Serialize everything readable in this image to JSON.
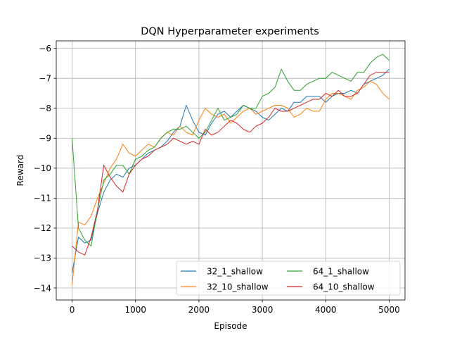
{
  "chart_data": {
    "type": "line",
    "title": "DQN Hyperparameter experiments",
    "xlabel": "Episode",
    "ylabel": "Reward",
    "xlim": [
      -250,
      5250
    ],
    "ylim": [
      -14.4,
      -5.75
    ],
    "grid": true,
    "legend_position": "lower right",
    "legend_columns": 2,
    "x_ticks": [
      0,
      1000,
      2000,
      3000,
      4000,
      5000
    ],
    "x_tick_labels": [
      "0",
      "1000",
      "2000",
      "3000",
      "4000",
      "5000"
    ],
    "y_ticks": [
      -14,
      -13,
      -12,
      -11,
      -10,
      -9,
      -8,
      -7,
      -6
    ],
    "y_tick_labels": [
      "−14",
      "−13",
      "−12",
      "−11",
      "−10",
      "−9",
      "−8",
      "−7",
      "−6"
    ],
    "x": [
      0,
      100,
      200,
      300,
      400,
      500,
      600,
      700,
      800,
      900,
      1000,
      1100,
      1200,
      1300,
      1400,
      1500,
      1600,
      1700,
      1800,
      1900,
      2000,
      2100,
      2200,
      2300,
      2400,
      2500,
      2600,
      2700,
      2800,
      2900,
      3000,
      3100,
      3200,
      3300,
      3400,
      3500,
      3600,
      3700,
      3800,
      3900,
      4000,
      4100,
      4200,
      4300,
      4400,
      4500,
      4600,
      4700,
      4800,
      4900,
      5000
    ],
    "series": [
      {
        "name": "32_1_shallow",
        "color": "#1f77b4",
        "values": [
          -13.5,
          -12.3,
          -12.5,
          -12.4,
          -11.5,
          -10.8,
          -10.4,
          -10.2,
          -10.3,
          -10.0,
          -9.9,
          -9.7,
          -9.5,
          -9.4,
          -9.3,
          -9.1,
          -8.8,
          -8.6,
          -7.9,
          -8.4,
          -8.8,
          -8.9,
          -8.5,
          -8.2,
          -8.1,
          -8.3,
          -8.1,
          -7.9,
          -8.0,
          -8.1,
          -8.3,
          -8.4,
          -8.2,
          -8.0,
          -8.1,
          -7.8,
          -7.8,
          -7.6,
          -7.6,
          -7.6,
          -7.8,
          -7.6,
          -7.5,
          -7.5,
          -7.4,
          -7.5,
          -7.2,
          -7.1,
          -7.0,
          -6.9,
          -6.7
        ]
      },
      {
        "name": "32_10_shallow",
        "color": "#ff7f0e",
        "values": [
          -13.9,
          -11.8,
          -11.9,
          -11.6,
          -11.0,
          -10.5,
          -10.0,
          -9.7,
          -9.2,
          -9.5,
          -9.6,
          -9.4,
          -9.2,
          -9.3,
          -9.0,
          -8.8,
          -8.9,
          -8.6,
          -8.8,
          -8.9,
          -8.4,
          -8.0,
          -8.2,
          -8.3,
          -8.2,
          -8.5,
          -8.3,
          -8.1,
          -8.0,
          -8.2,
          -8.1,
          -8.0,
          -7.9,
          -7.9,
          -8.0,
          -8.3,
          -8.2,
          -8.0,
          -8.1,
          -8.1,
          -7.7,
          -7.5,
          -7.5,
          -7.6,
          -7.7,
          -7.4,
          -7.3,
          -7.1,
          -7.2,
          -7.5,
          -7.7
        ]
      },
      {
        "name": "64_1_shallow",
        "color": "#2ca02c",
        "values": [
          -9.0,
          -12.0,
          -12.4,
          -12.6,
          -11.4,
          -10.4,
          -10.2,
          -9.9,
          -9.9,
          -10.2,
          -9.7,
          -9.6,
          -9.4,
          -9.3,
          -9.0,
          -8.8,
          -8.7,
          -8.7,
          -8.6,
          -8.8,
          -9.0,
          -8.8,
          -8.4,
          -8.0,
          -8.4,
          -8.3,
          -8.2,
          -7.9,
          -8.0,
          -8.0,
          -7.6,
          -7.5,
          -7.3,
          -6.7,
          -7.1,
          -7.4,
          -7.4,
          -7.2,
          -7.1,
          -7.0,
          -7.0,
          -6.8,
          -6.9,
          -7.0,
          -7.1,
          -6.8,
          -6.8,
          -6.5,
          -6.3,
          -6.2,
          -6.4
        ]
      },
      {
        "name": "64_10_shallow",
        "color": "#d62728",
        "values": [
          -12.6,
          -12.8,
          -12.9,
          -12.3,
          -11.4,
          -9.9,
          -10.3,
          -10.6,
          -10.8,
          -10.2,
          -9.9,
          -9.7,
          -9.6,
          -9.4,
          -9.3,
          -9.2,
          -9.0,
          -9.1,
          -9.2,
          -9.1,
          -9.2,
          -8.7,
          -8.9,
          -8.8,
          -8.6,
          -8.4,
          -8.5,
          -8.7,
          -8.8,
          -8.6,
          -8.5,
          -8.3,
          -8.0,
          -8.1,
          -8.1,
          -8.0,
          -7.9,
          -7.8,
          -7.7,
          -7.7,
          -7.5,
          -7.6,
          -7.4,
          -7.6,
          -7.6,
          -7.5,
          -7.2,
          -6.9,
          -6.8,
          -6.8,
          -6.8
        ]
      }
    ]
  }
}
